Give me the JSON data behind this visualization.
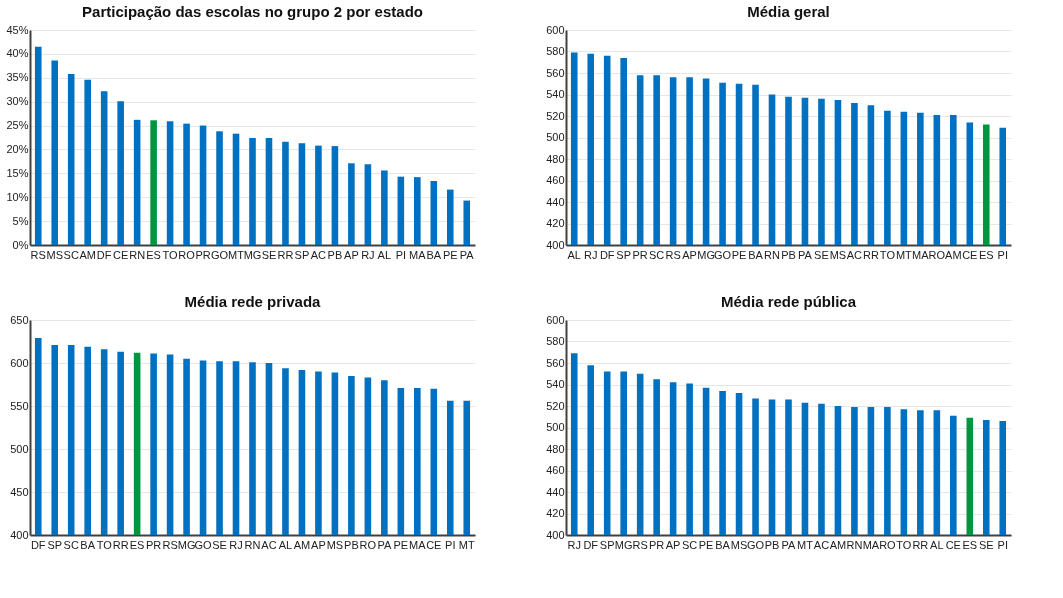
{
  "chart_data": [
    {
      "type": "bar",
      "title": "Participação das escolas no grupo 2 por estado",
      "categories": [
        "RS",
        "MS",
        "SC",
        "AM",
        "DF",
        "CE",
        "RN",
        "ES",
        "TO",
        "RO",
        "PR",
        "GO",
        "MT",
        "MG",
        "SE",
        "RR",
        "SP",
        "AC",
        "PB",
        "AP",
        "RJ",
        "AL",
        "PI",
        "MA",
        "BA",
        "PE",
        "PA"
      ],
      "values": [
        41.5,
        38.6,
        35.8,
        34.6,
        32.2,
        30.1,
        26.2,
        26.1,
        25.9,
        25.4,
        25.0,
        23.8,
        23.3,
        22.4,
        22.4,
        21.6,
        21.3,
        20.8,
        20.7,
        17.1,
        16.9,
        15.6,
        14.3,
        14.2,
        13.4,
        11.6,
        9.3
      ],
      "colors": [
        "#0070c0",
        "#0070c0",
        "#0070c0",
        "#0070c0",
        "#0070c0",
        "#0070c0",
        "#0070c0",
        "#00963f",
        "#0070c0",
        "#0070c0",
        "#0070c0",
        "#0070c0",
        "#0070c0",
        "#0070c0",
        "#0070c0",
        "#0070c0",
        "#0070c0",
        "#0070c0",
        "#0070c0",
        "#0070c0",
        "#0070c0",
        "#0070c0",
        "#0070c0",
        "#0070c0",
        "#0070c0",
        "#0070c0",
        "#0070c0"
      ],
      "ylim": [
        0,
        45
      ],
      "yticks": [
        {
          "value": 0,
          "label": "0%"
        },
        {
          "value": 5,
          "label": "5%"
        },
        {
          "value": 10,
          "label": "10%"
        },
        {
          "value": 15,
          "label": "15%"
        },
        {
          "value": 20,
          "label": "20%"
        },
        {
          "value": 25,
          "label": "25%"
        },
        {
          "value": 30,
          "label": "30%"
        },
        {
          "value": 35,
          "label": "35%"
        },
        {
          "value": 40,
          "label": "40%"
        },
        {
          "value": 45,
          "label": "45%"
        }
      ],
      "grid": "y",
      "legend": false
    },
    {
      "type": "bar",
      "title": "Média geral",
      "categories": [
        "AL",
        "RJ",
        "DF",
        "SP",
        "PR",
        "SC",
        "RS",
        "AP",
        "MG",
        "GO",
        "PE",
        "BA",
        "RN",
        "PB",
        "PA",
        "SE",
        "MS",
        "AC",
        "RR",
        "TO",
        "MT",
        "MA",
        "RO",
        "AM",
        "CE",
        "ES",
        "PI"
      ],
      "values": [
        579,
        578,
        576,
        574,
        558,
        558,
        556,
        556,
        555,
        551,
        550,
        549,
        540,
        538,
        537,
        536,
        535,
        532,
        530,
        525,
        524,
        523,
        521,
        521,
        514,
        512,
        509
      ],
      "colors": [
        "#0070c0",
        "#0070c0",
        "#0070c0",
        "#0070c0",
        "#0070c0",
        "#0070c0",
        "#0070c0",
        "#0070c0",
        "#0070c0",
        "#0070c0",
        "#0070c0",
        "#0070c0",
        "#0070c0",
        "#0070c0",
        "#0070c0",
        "#0070c0",
        "#0070c0",
        "#0070c0",
        "#0070c0",
        "#0070c0",
        "#0070c0",
        "#0070c0",
        "#0070c0",
        "#0070c0",
        "#0070c0",
        "#00963f",
        "#0070c0"
      ],
      "ylim": [
        400,
        600
      ],
      "yticks": [
        400,
        420,
        440,
        460,
        480,
        500,
        520,
        540,
        560,
        580,
        600
      ],
      "grid": "y",
      "legend": false
    },
    {
      "type": "bar",
      "title": "Média rede privada",
      "categories": [
        "DF",
        "SP",
        "SC",
        "BA",
        "TO",
        "RR",
        "ES",
        "PR",
        "RS",
        "MG",
        "GO",
        "SE",
        "RJ",
        "RN",
        "AC",
        "AL",
        "AM",
        "AP",
        "MS",
        "PB",
        "RO",
        "PA",
        "PE",
        "MA",
        "CE",
        "PI",
        "MT"
      ],
      "values": [
        629,
        621,
        621,
        619,
        616,
        613,
        612,
        611,
        610,
        605,
        603,
        602,
        602,
        601,
        600,
        594,
        592,
        590,
        589,
        585,
        583,
        580,
        571,
        571,
        570,
        556,
        556
      ],
      "colors": [
        "#0070c0",
        "#0070c0",
        "#0070c0",
        "#0070c0",
        "#0070c0",
        "#0070c0",
        "#00963f",
        "#0070c0",
        "#0070c0",
        "#0070c0",
        "#0070c0",
        "#0070c0",
        "#0070c0",
        "#0070c0",
        "#0070c0",
        "#0070c0",
        "#0070c0",
        "#0070c0",
        "#0070c0",
        "#0070c0",
        "#0070c0",
        "#0070c0",
        "#0070c0",
        "#0070c0",
        "#0070c0",
        "#0070c0",
        "#0070c0"
      ],
      "ylim": [
        400,
        650
      ],
      "yticks": [
        400,
        450,
        500,
        550,
        600,
        650
      ],
      "grid": "y",
      "legend": false
    },
    {
      "type": "bar",
      "title": "Média rede pública",
      "categories": [
        "RJ",
        "DF",
        "SP",
        "MG",
        "RS",
        "PR",
        "AP",
        "SC",
        "PE",
        "BA",
        "MS",
        "GO",
        "PB",
        "PA",
        "MT",
        "AC",
        "AM",
        "RN",
        "MA",
        "RO",
        "TO",
        "RR",
        "AL",
        "CE",
        "ES",
        "SE",
        "PI"
      ],
      "values": [
        569,
        558,
        552,
        552,
        550,
        545,
        542,
        541,
        537,
        534,
        532,
        527,
        526,
        526,
        523,
        522,
        520,
        519,
        519,
        519,
        517,
        516,
        516,
        511,
        509,
        507,
        506
      ],
      "colors": [
        "#0070c0",
        "#0070c0",
        "#0070c0",
        "#0070c0",
        "#0070c0",
        "#0070c0",
        "#0070c0",
        "#0070c0",
        "#0070c0",
        "#0070c0",
        "#0070c0",
        "#0070c0",
        "#0070c0",
        "#0070c0",
        "#0070c0",
        "#0070c0",
        "#0070c0",
        "#0070c0",
        "#0070c0",
        "#0070c0",
        "#0070c0",
        "#0070c0",
        "#0070c0",
        "#0070c0",
        "#00963f",
        "#0070c0",
        "#0070c0"
      ],
      "ylim": [
        400,
        600
      ],
      "yticks": [
        400,
        420,
        440,
        460,
        480,
        500,
        520,
        540,
        560,
        580,
        600
      ],
      "grid": "y",
      "legend": false
    }
  ]
}
